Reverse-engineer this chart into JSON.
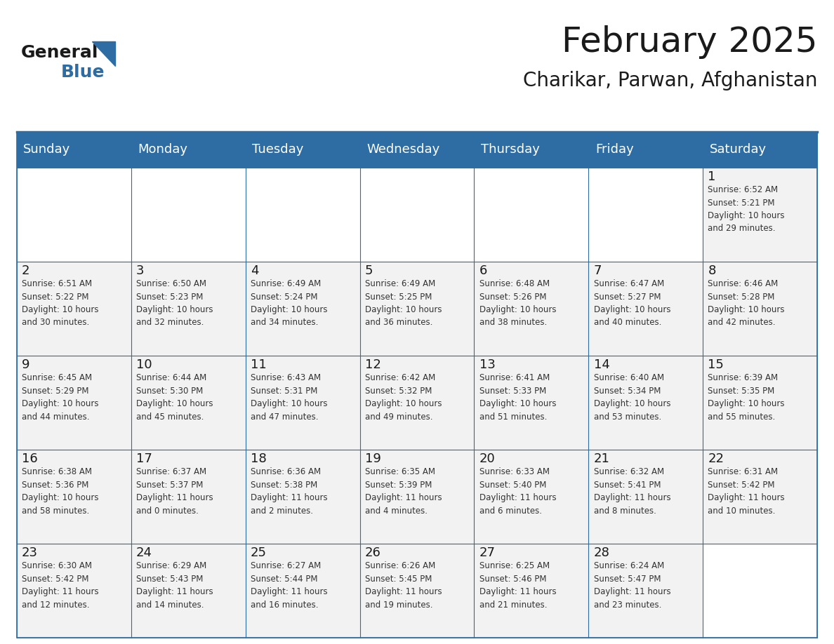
{
  "title": "February 2025",
  "subtitle": "Charikar, Parwan, Afghanistan",
  "header_color": "#2d6da3",
  "header_text_color": "#ffffff",
  "cell_bg_color": "#f2f2f2",
  "cell_alt_bg_color": "#ffffff",
  "border_color": "#2d6da3",
  "day_headers": [
    "Sunday",
    "Monday",
    "Tuesday",
    "Wednesday",
    "Thursday",
    "Friday",
    "Saturday"
  ],
  "days": [
    {
      "day": 1,
      "col": 6,
      "row": 0,
      "sunrise": "6:52 AM",
      "sunset": "5:21 PM",
      "daylight_hours": 10,
      "daylight_minutes": 29
    },
    {
      "day": 2,
      "col": 0,
      "row": 1,
      "sunrise": "6:51 AM",
      "sunset": "5:22 PM",
      "daylight_hours": 10,
      "daylight_minutes": 30
    },
    {
      "day": 3,
      "col": 1,
      "row": 1,
      "sunrise": "6:50 AM",
      "sunset": "5:23 PM",
      "daylight_hours": 10,
      "daylight_minutes": 32
    },
    {
      "day": 4,
      "col": 2,
      "row": 1,
      "sunrise": "6:49 AM",
      "sunset": "5:24 PM",
      "daylight_hours": 10,
      "daylight_minutes": 34
    },
    {
      "day": 5,
      "col": 3,
      "row": 1,
      "sunrise": "6:49 AM",
      "sunset": "5:25 PM",
      "daylight_hours": 10,
      "daylight_minutes": 36
    },
    {
      "day": 6,
      "col": 4,
      "row": 1,
      "sunrise": "6:48 AM",
      "sunset": "5:26 PM",
      "daylight_hours": 10,
      "daylight_minutes": 38
    },
    {
      "day": 7,
      "col": 5,
      "row": 1,
      "sunrise": "6:47 AM",
      "sunset": "5:27 PM",
      "daylight_hours": 10,
      "daylight_minutes": 40
    },
    {
      "day": 8,
      "col": 6,
      "row": 1,
      "sunrise": "6:46 AM",
      "sunset": "5:28 PM",
      "daylight_hours": 10,
      "daylight_minutes": 42
    },
    {
      "day": 9,
      "col": 0,
      "row": 2,
      "sunrise": "6:45 AM",
      "sunset": "5:29 PM",
      "daylight_hours": 10,
      "daylight_minutes": 44
    },
    {
      "day": 10,
      "col": 1,
      "row": 2,
      "sunrise": "6:44 AM",
      "sunset": "5:30 PM",
      "daylight_hours": 10,
      "daylight_minutes": 45
    },
    {
      "day": 11,
      "col": 2,
      "row": 2,
      "sunrise": "6:43 AM",
      "sunset": "5:31 PM",
      "daylight_hours": 10,
      "daylight_minutes": 47
    },
    {
      "day": 12,
      "col": 3,
      "row": 2,
      "sunrise": "6:42 AM",
      "sunset": "5:32 PM",
      "daylight_hours": 10,
      "daylight_minutes": 49
    },
    {
      "day": 13,
      "col": 4,
      "row": 2,
      "sunrise": "6:41 AM",
      "sunset": "5:33 PM",
      "daylight_hours": 10,
      "daylight_minutes": 51
    },
    {
      "day": 14,
      "col": 5,
      "row": 2,
      "sunrise": "6:40 AM",
      "sunset": "5:34 PM",
      "daylight_hours": 10,
      "daylight_minutes": 53
    },
    {
      "day": 15,
      "col": 6,
      "row": 2,
      "sunrise": "6:39 AM",
      "sunset": "5:35 PM",
      "daylight_hours": 10,
      "daylight_minutes": 55
    },
    {
      "day": 16,
      "col": 0,
      "row": 3,
      "sunrise": "6:38 AM",
      "sunset": "5:36 PM",
      "daylight_hours": 10,
      "daylight_minutes": 58
    },
    {
      "day": 17,
      "col": 1,
      "row": 3,
      "sunrise": "6:37 AM",
      "sunset": "5:37 PM",
      "daylight_hours": 11,
      "daylight_minutes": 0
    },
    {
      "day": 18,
      "col": 2,
      "row": 3,
      "sunrise": "6:36 AM",
      "sunset": "5:38 PM",
      "daylight_hours": 11,
      "daylight_minutes": 2
    },
    {
      "day": 19,
      "col": 3,
      "row": 3,
      "sunrise": "6:35 AM",
      "sunset": "5:39 PM",
      "daylight_hours": 11,
      "daylight_minutes": 4
    },
    {
      "day": 20,
      "col": 4,
      "row": 3,
      "sunrise": "6:33 AM",
      "sunset": "5:40 PM",
      "daylight_hours": 11,
      "daylight_minutes": 6
    },
    {
      "day": 21,
      "col": 5,
      "row": 3,
      "sunrise": "6:32 AM",
      "sunset": "5:41 PM",
      "daylight_hours": 11,
      "daylight_minutes": 8
    },
    {
      "day": 22,
      "col": 6,
      "row": 3,
      "sunrise": "6:31 AM",
      "sunset": "5:42 PM",
      "daylight_hours": 11,
      "daylight_minutes": 10
    },
    {
      "day": 23,
      "col": 0,
      "row": 4,
      "sunrise": "6:30 AM",
      "sunset": "5:42 PM",
      "daylight_hours": 11,
      "daylight_minutes": 12
    },
    {
      "day": 24,
      "col": 1,
      "row": 4,
      "sunrise": "6:29 AM",
      "sunset": "5:43 PM",
      "daylight_hours": 11,
      "daylight_minutes": 14
    },
    {
      "day": 25,
      "col": 2,
      "row": 4,
      "sunrise": "6:27 AM",
      "sunset": "5:44 PM",
      "daylight_hours": 11,
      "daylight_minutes": 16
    },
    {
      "day": 26,
      "col": 3,
      "row": 4,
      "sunrise": "6:26 AM",
      "sunset": "5:45 PM",
      "daylight_hours": 11,
      "daylight_minutes": 19
    },
    {
      "day": 27,
      "col": 4,
      "row": 4,
      "sunrise": "6:25 AM",
      "sunset": "5:46 PM",
      "daylight_hours": 11,
      "daylight_minutes": 21
    },
    {
      "day": 28,
      "col": 5,
      "row": 4,
      "sunrise": "6:24 AM",
      "sunset": "5:47 PM",
      "daylight_hours": 11,
      "daylight_minutes": 23
    }
  ],
  "num_rows": 5,
  "num_cols": 7,
  "logo_text_general": "General",
  "logo_text_blue": "Blue",
  "logo_color_general": "#1a1a1a",
  "logo_color_blue": "#2d6da3",
  "logo_triangle_color": "#2d6da3",
  "title_fontsize": 36,
  "subtitle_fontsize": 20,
  "day_header_fontsize": 13,
  "day_number_fontsize": 13,
  "cell_text_fontsize": 8.5,
  "background_color": "#ffffff"
}
